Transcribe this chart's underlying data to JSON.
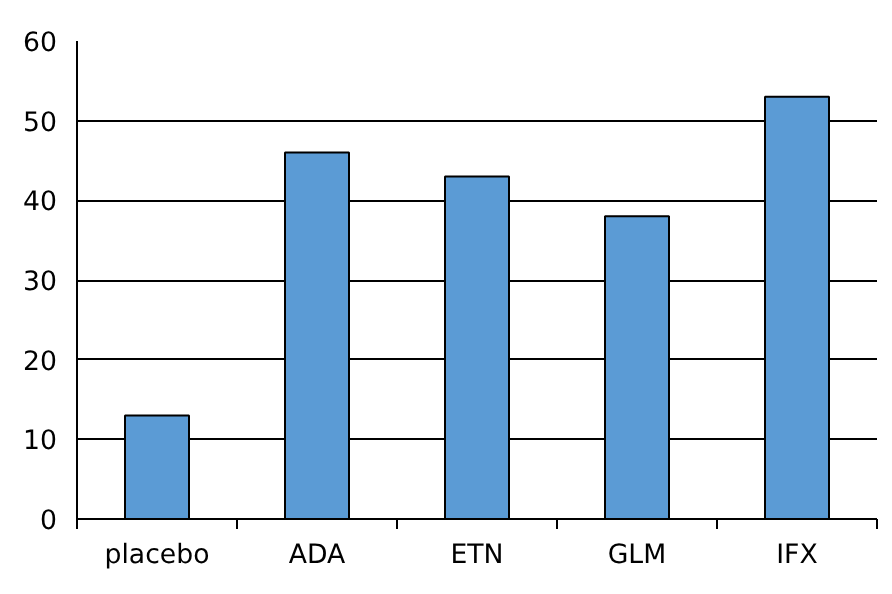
{
  "chart_data": {
    "type": "bar",
    "categories": [
      "placebo",
      "ADA",
      "ETN",
      "GLM",
      "IFX"
    ],
    "values": [
      13,
      46,
      43,
      38,
      53
    ],
    "color": "#5b9bd5",
    "ylim": [
      0,
      60
    ],
    "yticks": [
      0,
      10,
      20,
      30,
      40,
      50,
      60
    ],
    "grid": "y"
  }
}
